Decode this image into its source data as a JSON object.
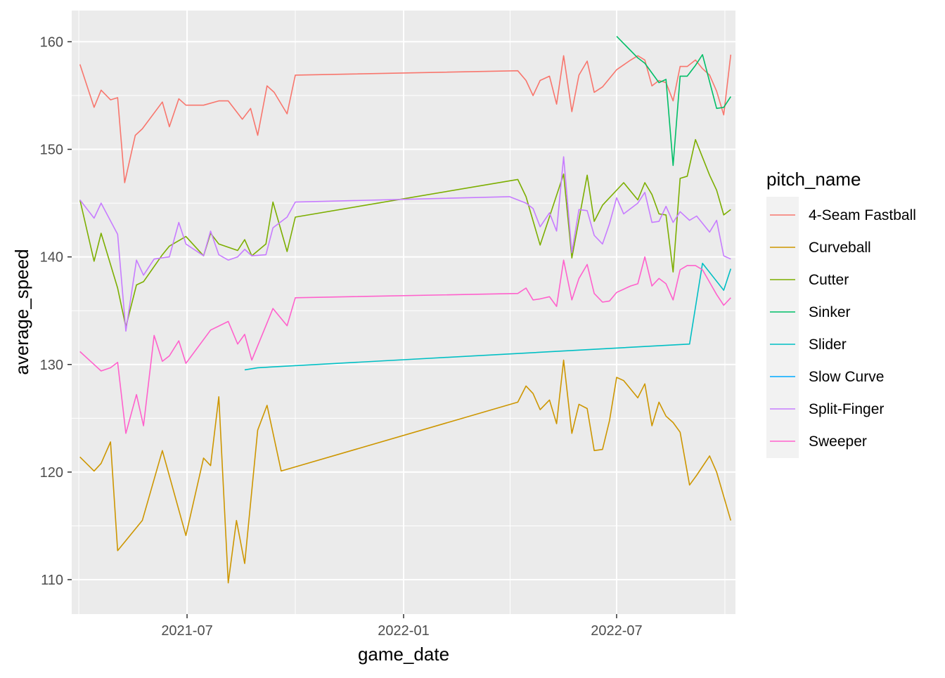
{
  "chart_data": {
    "type": "line",
    "title": "",
    "xlabel": "game_date",
    "ylabel": "average_speed",
    "x_ticks": [
      "2021-07",
      "2022-01",
      "2022-07"
    ],
    "y_ticks": [
      110,
      120,
      130,
      140,
      150,
      160
    ],
    "xlim": [
      "2021-03-25",
      "2022-10-10"
    ],
    "ylim": [
      106.8,
      162.9
    ],
    "grid": true,
    "legend_position": "right",
    "legend_title": "pitch_name",
    "series": [
      {
        "name": "4-Seam Fastball",
        "color": "#F8766D",
        "points": [
          [
            "2021-04-01",
            157.9
          ],
          [
            "2021-04-13",
            153.9
          ],
          [
            "2021-04-19",
            155.5
          ],
          [
            "2021-04-27",
            154.6
          ],
          [
            "2021-05-03",
            154.8
          ],
          [
            "2021-05-09",
            146.9
          ],
          [
            "2021-05-18",
            151.3
          ],
          [
            "2021-05-24",
            151.9
          ],
          [
            "2021-06-10",
            154.4
          ],
          [
            "2021-06-16",
            152.1
          ],
          [
            "2021-06-24",
            154.7
          ],
          [
            "2021-06-30",
            154.1
          ],
          [
            "2021-07-15",
            154.1
          ],
          [
            "2021-07-28",
            154.5
          ],
          [
            "2021-08-05",
            154.5
          ],
          [
            "2021-08-17",
            152.8
          ],
          [
            "2021-08-24",
            153.8
          ],
          [
            "2021-08-30",
            151.3
          ],
          [
            "2021-09-07",
            155.9
          ],
          [
            "2021-09-13",
            155.3
          ],
          [
            "2021-09-24",
            153.3
          ],
          [
            "2021-10-01",
            156.9
          ],
          [
            "2022-04-08",
            157.3
          ],
          [
            "2022-04-15",
            156.4
          ],
          [
            "2022-04-21",
            155.0
          ],
          [
            "2022-04-27",
            156.4
          ],
          [
            "2022-05-05",
            156.8
          ],
          [
            "2022-05-11",
            154.2
          ],
          [
            "2022-05-17",
            158.7
          ],
          [
            "2022-05-24",
            153.5
          ],
          [
            "2022-05-30",
            156.9
          ],
          [
            "2022-06-06",
            158.2
          ],
          [
            "2022-06-12",
            155.3
          ],
          [
            "2022-06-19",
            155.8
          ],
          [
            "2022-07-01",
            157.4
          ],
          [
            "2022-07-13",
            158.3
          ],
          [
            "2022-07-19",
            158.7
          ],
          [
            "2022-07-25",
            158.3
          ],
          [
            "2022-07-31",
            155.9
          ],
          [
            "2022-08-06",
            156.4
          ],
          [
            "2022-08-12",
            156.2
          ],
          [
            "2022-08-18",
            154.5
          ],
          [
            "2022-08-24",
            157.7
          ],
          [
            "2022-08-30",
            157.7
          ],
          [
            "2022-09-06",
            158.3
          ],
          [
            "2022-09-12",
            157.5
          ],
          [
            "2022-09-18",
            156.9
          ],
          [
            "2022-09-24",
            155.4
          ],
          [
            "2022-09-30",
            153.2
          ],
          [
            "2022-10-06",
            158.8
          ]
        ]
      },
      {
        "name": "Curveball",
        "color": "#CD9600",
        "points": [
          [
            "2021-04-01",
            121.4
          ],
          [
            "2021-04-13",
            120.1
          ],
          [
            "2021-04-19",
            120.8
          ],
          [
            "2021-04-27",
            122.8
          ],
          [
            "2021-05-03",
            112.7
          ],
          [
            "2021-05-24",
            115.5
          ],
          [
            "2021-06-10",
            122.0
          ],
          [
            "2021-06-30",
            114.1
          ],
          [
            "2021-07-15",
            121.3
          ],
          [
            "2021-07-21",
            120.6
          ],
          [
            "2021-07-28",
            127.0
          ],
          [
            "2021-08-05",
            109.7
          ],
          [
            "2021-08-12",
            115.5
          ],
          [
            "2021-08-19",
            111.5
          ],
          [
            "2021-08-30",
            123.9
          ],
          [
            "2021-09-07",
            126.2
          ],
          [
            "2021-09-19",
            120.1
          ],
          [
            "2022-04-08",
            126.5
          ],
          [
            "2022-04-15",
            128.0
          ],
          [
            "2022-04-21",
            127.3
          ],
          [
            "2022-04-27",
            125.8
          ],
          [
            "2022-05-05",
            126.7
          ],
          [
            "2022-05-11",
            124.5
          ],
          [
            "2022-05-17",
            130.4
          ],
          [
            "2022-05-24",
            123.6
          ],
          [
            "2022-05-30",
            126.3
          ],
          [
            "2022-06-06",
            125.9
          ],
          [
            "2022-06-12",
            122.0
          ],
          [
            "2022-06-19",
            122.1
          ],
          [
            "2022-06-25",
            124.8
          ],
          [
            "2022-07-01",
            128.8
          ],
          [
            "2022-07-07",
            128.5
          ],
          [
            "2022-07-19",
            126.9
          ],
          [
            "2022-07-25",
            128.2
          ],
          [
            "2022-07-31",
            124.3
          ],
          [
            "2022-08-06",
            126.5
          ],
          [
            "2022-08-12",
            125.2
          ],
          [
            "2022-08-18",
            124.6
          ],
          [
            "2022-08-24",
            123.7
          ],
          [
            "2022-09-01",
            118.8
          ],
          [
            "2022-09-07",
            119.7
          ],
          [
            "2022-09-18",
            121.5
          ],
          [
            "2022-09-24",
            120.0
          ],
          [
            "2022-10-06",
            115.5
          ]
        ]
      },
      {
        "name": "Cutter",
        "color": "#7CAE00",
        "points": [
          [
            "2021-04-01",
            145.3
          ],
          [
            "2021-04-13",
            139.6
          ],
          [
            "2021-04-19",
            142.2
          ],
          [
            "2021-05-03",
            137.1
          ],
          [
            "2021-05-10",
            133.5
          ],
          [
            "2021-05-19",
            137.4
          ],
          [
            "2021-05-25",
            137.7
          ],
          [
            "2021-06-10",
            140.2
          ],
          [
            "2021-06-16",
            141.0
          ],
          [
            "2021-06-30",
            141.9
          ],
          [
            "2021-07-15",
            140.1
          ],
          [
            "2021-07-21",
            142.2
          ],
          [
            "2021-07-28",
            141.2
          ],
          [
            "2021-08-05",
            140.9
          ],
          [
            "2021-08-13",
            140.6
          ],
          [
            "2021-08-19",
            141.6
          ],
          [
            "2021-08-25",
            140.1
          ],
          [
            "2021-09-06",
            141.2
          ],
          [
            "2021-09-12",
            145.1
          ],
          [
            "2021-09-24",
            140.5
          ],
          [
            "2021-10-01",
            143.7
          ],
          [
            "2022-04-08",
            147.2
          ],
          [
            "2022-04-15",
            145.6
          ],
          [
            "2022-04-27",
            141.1
          ],
          [
            "2022-05-17",
            147.7
          ],
          [
            "2022-05-24",
            139.9
          ],
          [
            "2022-06-06",
            147.6
          ],
          [
            "2022-06-12",
            143.3
          ],
          [
            "2022-06-19",
            144.8
          ],
          [
            "2022-07-07",
            146.9
          ],
          [
            "2022-07-19",
            145.3
          ],
          [
            "2022-07-25",
            146.9
          ],
          [
            "2022-07-31",
            145.8
          ],
          [
            "2022-08-06",
            144.0
          ],
          [
            "2022-08-12",
            143.9
          ],
          [
            "2022-08-18",
            138.6
          ],
          [
            "2022-08-24",
            147.3
          ],
          [
            "2022-08-30",
            147.5
          ],
          [
            "2022-09-06",
            150.9
          ],
          [
            "2022-09-18",
            147.6
          ],
          [
            "2022-09-24",
            146.2
          ],
          [
            "2022-09-30",
            143.9
          ],
          [
            "2022-10-06",
            144.4
          ]
        ]
      },
      {
        "name": "Sinker",
        "color": "#00BE67",
        "points": [
          [
            "2022-07-01",
            160.5
          ],
          [
            "2022-07-19",
            158.5
          ],
          [
            "2022-07-25",
            158.0
          ],
          [
            "2022-08-06",
            156.2
          ],
          [
            "2022-08-12",
            156.5
          ],
          [
            "2022-08-18",
            148.5
          ],
          [
            "2022-08-24",
            156.8
          ],
          [
            "2022-08-30",
            156.8
          ],
          [
            "2022-09-06",
            157.8
          ],
          [
            "2022-09-12",
            158.8
          ],
          [
            "2022-09-24",
            153.8
          ],
          [
            "2022-09-30",
            153.9
          ],
          [
            "2022-10-06",
            154.9
          ]
        ]
      },
      {
        "name": "Slider",
        "color": "#00BFC4",
        "points": [
          [
            "2021-08-19",
            129.5
          ],
          [
            "2021-08-30",
            129.7
          ],
          [
            "2022-09-01",
            131.9
          ],
          [
            "2022-09-12",
            139.4
          ],
          [
            "2022-09-30",
            136.9
          ],
          [
            "2022-10-06",
            138.9
          ]
        ]
      },
      {
        "name": "Slow Curve",
        "color": "#00A9FF",
        "points": []
      },
      {
        "name": "Split-Finger",
        "color": "#C77CFF",
        "points": [
          [
            "2021-04-01",
            145.3
          ],
          [
            "2021-04-13",
            143.6
          ],
          [
            "2021-04-19",
            145.0
          ],
          [
            "2021-05-03",
            142.1
          ],
          [
            "2021-05-10",
            133.1
          ],
          [
            "2021-05-19",
            139.7
          ],
          [
            "2021-05-25",
            138.3
          ],
          [
            "2021-06-03",
            139.8
          ],
          [
            "2021-06-16",
            140.0
          ],
          [
            "2021-06-24",
            143.2
          ],
          [
            "2021-06-30",
            141.2
          ],
          [
            "2021-07-15",
            140.1
          ],
          [
            "2021-07-21",
            142.4
          ],
          [
            "2021-07-28",
            140.2
          ],
          [
            "2021-08-05",
            139.7
          ],
          [
            "2021-08-13",
            140.0
          ],
          [
            "2021-08-19",
            140.7
          ],
          [
            "2021-08-25",
            140.1
          ],
          [
            "2021-09-06",
            140.2
          ],
          [
            "2021-09-12",
            142.7
          ],
          [
            "2021-09-24",
            143.7
          ],
          [
            "2021-10-01",
            145.1
          ],
          [
            "2022-04-01",
            145.6
          ],
          [
            "2022-04-15",
            145.0
          ],
          [
            "2022-04-21",
            144.5
          ],
          [
            "2022-04-27",
            142.8
          ],
          [
            "2022-05-05",
            144.1
          ],
          [
            "2022-05-11",
            142.4
          ],
          [
            "2022-05-17",
            149.3
          ],
          [
            "2022-05-24",
            140.4
          ],
          [
            "2022-05-30",
            144.4
          ],
          [
            "2022-06-06",
            144.3
          ],
          [
            "2022-06-12",
            142.0
          ],
          [
            "2022-06-19",
            141.2
          ],
          [
            "2022-06-25",
            143.1
          ],
          [
            "2022-07-01",
            145.5
          ],
          [
            "2022-07-07",
            144.0
          ],
          [
            "2022-07-19",
            145.0
          ],
          [
            "2022-07-25",
            146.0
          ],
          [
            "2022-07-31",
            143.2
          ],
          [
            "2022-08-06",
            143.3
          ],
          [
            "2022-08-12",
            144.7
          ],
          [
            "2022-08-18",
            143.2
          ],
          [
            "2022-08-24",
            144.2
          ],
          [
            "2022-09-01",
            143.4
          ],
          [
            "2022-09-07",
            143.8
          ],
          [
            "2022-09-18",
            142.3
          ],
          [
            "2022-09-24",
            143.4
          ],
          [
            "2022-09-30",
            140.1
          ],
          [
            "2022-10-06",
            139.8
          ]
        ]
      },
      {
        "name": "Sweeper",
        "color": "#FF61CC",
        "points": [
          [
            "2021-04-01",
            131.2
          ],
          [
            "2021-04-19",
            129.4
          ],
          [
            "2021-04-27",
            129.7
          ],
          [
            "2021-05-03",
            130.2
          ],
          [
            "2021-05-10",
            123.6
          ],
          [
            "2021-05-19",
            127.2
          ],
          [
            "2021-05-25",
            124.3
          ],
          [
            "2021-06-03",
            132.7
          ],
          [
            "2021-06-10",
            130.3
          ],
          [
            "2021-06-16",
            130.8
          ],
          [
            "2021-06-24",
            132.2
          ],
          [
            "2021-06-30",
            130.1
          ],
          [
            "2021-07-21",
            133.2
          ],
          [
            "2021-08-05",
            134.0
          ],
          [
            "2021-08-13",
            131.9
          ],
          [
            "2021-08-19",
            132.8
          ],
          [
            "2021-08-25",
            130.4
          ],
          [
            "2021-09-12",
            135.2
          ],
          [
            "2021-09-24",
            133.6
          ],
          [
            "2021-10-01",
            136.2
          ],
          [
            "2022-04-08",
            136.6
          ],
          [
            "2022-04-15",
            137.1
          ],
          [
            "2022-04-21",
            136.0
          ],
          [
            "2022-04-27",
            136.1
          ],
          [
            "2022-05-05",
            136.3
          ],
          [
            "2022-05-11",
            135.4
          ],
          [
            "2022-05-17",
            139.7
          ],
          [
            "2022-05-24",
            136.0
          ],
          [
            "2022-05-30",
            138.0
          ],
          [
            "2022-06-06",
            139.3
          ],
          [
            "2022-06-12",
            136.6
          ],
          [
            "2022-06-19",
            135.8
          ],
          [
            "2022-06-25",
            135.9
          ],
          [
            "2022-07-01",
            136.7
          ],
          [
            "2022-07-13",
            137.3
          ],
          [
            "2022-07-19",
            137.5
          ],
          [
            "2022-07-25",
            140.0
          ],
          [
            "2022-07-31",
            137.3
          ],
          [
            "2022-08-06",
            138.0
          ],
          [
            "2022-08-12",
            137.5
          ],
          [
            "2022-08-18",
            136.0
          ],
          [
            "2022-08-24",
            138.8
          ],
          [
            "2022-08-30",
            139.2
          ],
          [
            "2022-09-06",
            139.2
          ],
          [
            "2022-09-12",
            138.8
          ],
          [
            "2022-09-24",
            136.5
          ],
          [
            "2022-09-30",
            135.5
          ],
          [
            "2022-10-06",
            136.2
          ]
        ]
      }
    ]
  }
}
